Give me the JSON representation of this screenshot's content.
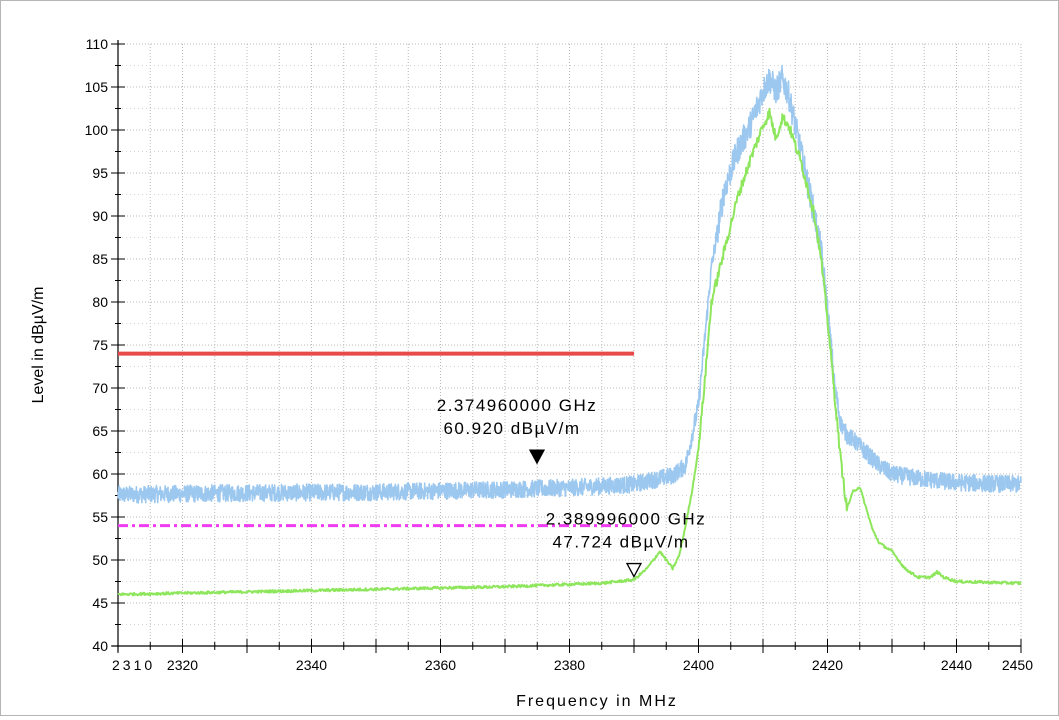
{
  "chart_data": {
    "type": "line",
    "xlabel": "Frequency in MHz",
    "ylabel": "Level in dBµV/m",
    "xlim": [
      2310,
      2450
    ],
    "ylim": [
      40,
      110
    ],
    "x_tick_labels": [
      "2310",
      "2320",
      "2340",
      "2360",
      "2380",
      "2400",
      "2420",
      "2440",
      "2450"
    ],
    "y_tick_labels": [
      "40",
      "45",
      "50",
      "55",
      "60",
      "65",
      "70",
      "75",
      "80",
      "85",
      "90",
      "95",
      "100",
      "105",
      "110"
    ],
    "grid": true,
    "colors": {
      "peak_trace": "#9cc8f0",
      "average_trace": "#8ee65c",
      "peak_limit": "#e84a4a",
      "average_limit": "#f03cf0"
    },
    "limit_lines": [
      {
        "style": "solid",
        "color": "#e84a4a",
        "x": [
          2310,
          2390
        ],
        "y": 74
      },
      {
        "style": "dash-dot",
        "color": "#f03cf0",
        "x": [
          2310,
          2390
        ],
        "y": 54
      }
    ],
    "series": [
      {
        "style": "noisy",
        "color": "#9cc8f0",
        "x": [
          2310,
          2330,
          2350,
          2370,
          2380,
          2390,
          2394,
          2396,
          2398,
          2400,
          2402,
          2404,
          2406,
          2408,
          2410,
          2411,
          2412,
          2413,
          2414,
          2416,
          2418,
          2419,
          2420,
          2421,
          2422,
          2423,
          2424,
          2426,
          2428,
          2430,
          2434,
          2440,
          2450
        ],
        "y": [
          57.6,
          57.8,
          57.9,
          58.2,
          58.4,
          58.8,
          59.5,
          59.8,
          61.0,
          68.0,
          84.0,
          93.0,
          97.5,
          100.5,
          104.5,
          106.0,
          104.5,
          106.0,
          104.0,
          97.0,
          90.0,
          86.0,
          79.0,
          71.0,
          66.0,
          64.5,
          64.0,
          62.5,
          61.0,
          60.0,
          59.5,
          59.0,
          58.8
        ]
      },
      {
        "style": "smooth",
        "color": "#8ee65c",
        "x": [
          2310,
          2330,
          2350,
          2370,
          2385,
          2390,
          2392,
          2394,
          2395,
          2396,
          2397,
          2398,
          2399,
          2400,
          2401,
          2402,
          2404,
          2406,
          2408,
          2410,
          2411,
          2412,
          2413,
          2414,
          2416,
          2418,
          2419,
          2420,
          2421,
          2422,
          2423,
          2424,
          2425,
          2426,
          2427,
          2428,
          2430,
          2432,
          2434,
          2436,
          2437,
          2438,
          2440,
          2445,
          2450
        ],
        "y": [
          46.0,
          46.3,
          46.6,
          46.9,
          47.3,
          47.7,
          49.0,
          51.0,
          50.0,
          49.0,
          50.5,
          54.0,
          58.0,
          63.0,
          71.0,
          80.0,
          86.0,
          92.0,
          96.5,
          100.5,
          102.0,
          99.0,
          101.5,
          100.5,
          96.0,
          90.0,
          85.0,
          78.0,
          70.0,
          62.0,
          56.0,
          58.0,
          58.5,
          56.0,
          53.5,
          52.0,
          51.0,
          49.0,
          48.0,
          48.0,
          48.6,
          48.0,
          47.5,
          47.4,
          47.3
        ]
      }
    ],
    "markers": [
      {
        "x": 2374.96,
        "y": 60.92,
        "line1": "2.374960000 GHz",
        "line2": "60.920 dBµV/m",
        "filled": true
      },
      {
        "x": 2389.996,
        "y": 47.724,
        "line1": "2.389996000 GHz",
        "line2": "47.724 dBµV/m",
        "filled": false
      }
    ]
  }
}
